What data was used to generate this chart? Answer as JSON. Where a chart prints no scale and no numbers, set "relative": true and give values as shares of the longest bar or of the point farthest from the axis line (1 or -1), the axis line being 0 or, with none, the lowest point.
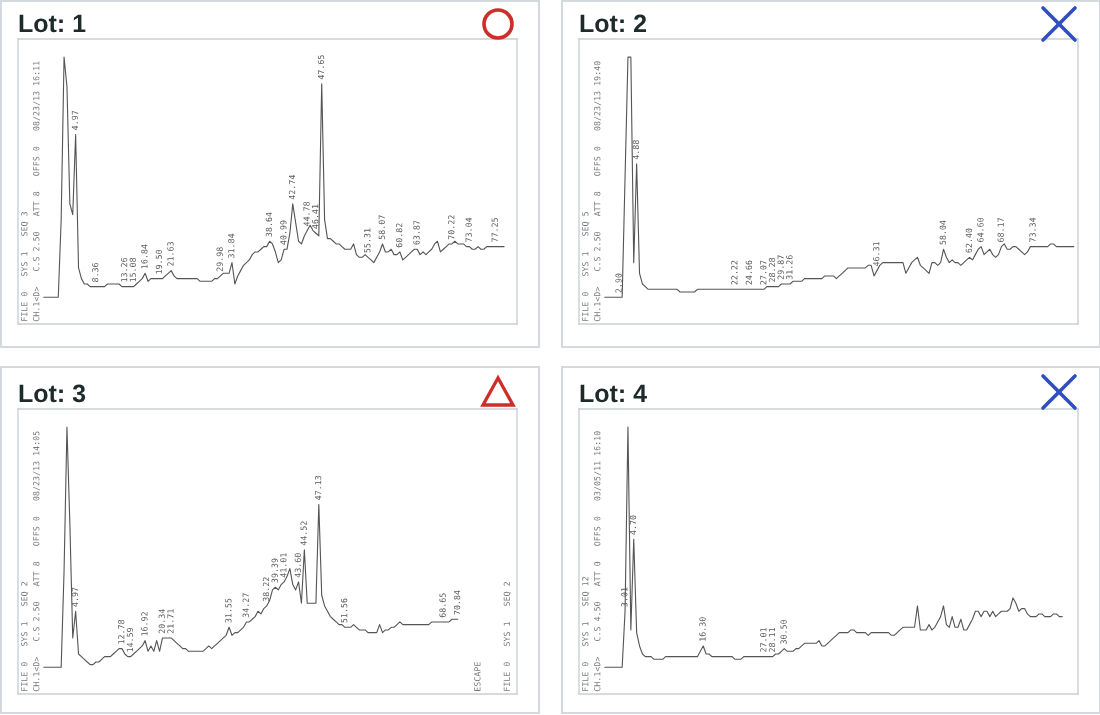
{
  "chart_data": [
    {
      "type": "line",
      "title": "Lot: 1",
      "relative": true,
      "color": "#555555",
      "categories": [
        null,
        null,
        null,
        null,
        null,
        null,
        null,
        null,
        null,
        null,
        null,
        "4.97",
        null,
        null,
        null,
        null,
        null,
        null,
        "8.36",
        null,
        null,
        null,
        null,
        null,
        null,
        null,
        null,
        null,
        "13.26",
        null,
        null,
        "15.08",
        null,
        null,
        null,
        "16.84",
        null,
        null,
        null,
        null,
        "19.50",
        null,
        null,
        null,
        "21.63",
        null,
        null,
        null,
        null,
        null,
        null,
        null,
        null,
        null,
        null,
        null,
        null,
        null,
        null,
        null,
        null,
        "29.98",
        null,
        null,
        null,
        "31.84",
        null,
        null,
        null,
        null,
        null,
        null,
        null,
        null,
        null,
        null,
        null,
        null,
        "38.64",
        null,
        null,
        null,
        null,
        "40.99",
        null,
        null,
        "42.74",
        null,
        null,
        null,
        null,
        "44.78",
        null,
        null,
        "46.41",
        null,
        "47.65",
        null,
        null,
        null,
        null,
        null,
        null,
        null,
        null,
        null,
        null,
        null,
        null,
        null,
        null,
        null,
        "55.31",
        null,
        null,
        null,
        null,
        "58.07",
        null,
        null,
        null,
        null,
        null,
        "60.82",
        null,
        null,
        null,
        null,
        null,
        "63.87",
        null,
        null,
        null,
        null,
        null,
        null,
        null,
        null,
        null,
        null,
        null,
        "70.22",
        null,
        null,
        null,
        null,
        null,
        "73.04",
        null,
        null,
        null,
        null,
        null,
        null,
        null,
        null,
        "77.25",
        null,
        null,
        null,
        null,
        null,
        null
      ],
      "values": [
        0.1,
        0.1,
        0.1,
        0.1,
        0.1,
        0.1,
        0.39,
        1.0,
        0.89,
        0.45,
        0.41,
        0.71,
        0.21,
        0.17,
        0.15,
        0.15,
        0.14,
        0.14,
        0.14,
        0.14,
        0.14,
        0.14,
        0.15,
        0.15,
        0.15,
        0.15,
        0.15,
        0.14,
        0.14,
        0.14,
        0.14,
        0.14,
        0.15,
        0.16,
        0.17,
        0.19,
        0.16,
        0.17,
        0.17,
        0.17,
        0.17,
        0.17,
        0.18,
        0.19,
        0.2,
        0.18,
        0.17,
        0.17,
        0.17,
        0.17,
        0.17,
        0.17,
        0.17,
        0.17,
        0.16,
        0.16,
        0.16,
        0.16,
        0.16,
        0.17,
        0.17,
        0.18,
        0.19,
        0.19,
        0.19,
        0.23,
        0.15,
        0.18,
        0.2,
        0.22,
        0.23,
        0.24,
        0.26,
        0.27,
        0.27,
        0.28,
        0.29,
        0.29,
        0.31,
        0.3,
        0.27,
        0.23,
        0.24,
        0.28,
        0.28,
        0.34,
        0.45,
        0.38,
        0.31,
        0.3,
        0.33,
        0.35,
        0.37,
        0.35,
        0.34,
        0.33,
        0.9,
        0.39,
        0.32,
        0.32,
        0.31,
        0.3,
        0.3,
        0.29,
        0.28,
        0.28,
        0.28,
        0.3,
        0.26,
        0.25,
        0.25,
        0.26,
        0.25,
        0.24,
        0.23,
        0.25,
        0.27,
        0.3,
        0.27,
        0.27,
        0.28,
        0.26,
        0.26,
        0.27,
        0.24,
        0.25,
        0.26,
        0.27,
        0.28,
        0.28,
        0.26,
        0.27,
        0.26,
        0.27,
        0.28,
        0.3,
        0.31,
        0.27,
        0.28,
        0.29,
        0.3,
        0.3,
        0.31,
        0.3,
        0.3,
        0.3,
        0.29,
        0.29,
        0.28,
        0.28,
        0.29,
        0.28,
        0.28,
        0.29,
        0.29,
        0.29,
        0.29,
        0.29,
        0.29,
        0.29,
        null,
        null,
        null
      ],
      "annotations": [
        "FILE 0   SYS 1   SEQ 3",
        "CH.1<D>   C.S 2.50   ATT 8   OFFS 0   08/23/13 16:11"
      ]
    },
    {
      "type": "line",
      "title": "Lot: 2",
      "relative": true,
      "color": "#555555",
      "categories": [
        null,
        null,
        null,
        null,
        null,
        "2.90",
        null,
        null,
        null,
        null,
        null,
        "4.88",
        null,
        null,
        null,
        null,
        null,
        null,
        null,
        null,
        null,
        null,
        null,
        null,
        null,
        null,
        null,
        null,
        null,
        null,
        null,
        null,
        null,
        null,
        null,
        null,
        null,
        null,
        null,
        null,
        null,
        null,
        null,
        null,
        null,
        "22.22",
        null,
        null,
        null,
        null,
        "24.66",
        null,
        null,
        null,
        null,
        "27.07",
        null,
        null,
        "28.28",
        null,
        null,
        "29.87",
        null,
        null,
        "31.26",
        null,
        null,
        null,
        null,
        null,
        null,
        null,
        null,
        null,
        null,
        null,
        null,
        null,
        null,
        null,
        null,
        null,
        null,
        null,
        null,
        null,
        null,
        null,
        null,
        null,
        null,
        null,
        null,
        null,
        "46.31",
        null,
        null,
        null,
        null,
        null,
        null,
        null,
        null,
        null,
        null,
        null,
        null,
        null,
        null,
        null,
        null,
        null,
        null,
        null,
        null,
        null,
        null,
        "58.04",
        null,
        null,
        null,
        null,
        null,
        null,
        null,
        null,
        "62.40",
        null,
        null,
        null,
        "64.60",
        null,
        null,
        null,
        null,
        null,
        null,
        "68.17",
        null,
        null,
        null,
        null,
        null,
        null,
        null,
        null,
        null,
        null,
        "73.34",
        null,
        null,
        null,
        null,
        null,
        null,
        null,
        null,
        null,
        null,
        null,
        null,
        null,
        null
      ],
      "values": [
        0.1,
        0.1,
        0.1,
        0.1,
        0.1,
        0.1,
        0.1,
        0.55,
        1.0,
        1.0,
        0.23,
        0.6,
        0.19,
        0.15,
        0.14,
        0.13,
        0.13,
        0.13,
        0.13,
        0.13,
        0.13,
        0.13,
        0.13,
        0.13,
        0.13,
        0.13,
        0.12,
        0.12,
        0.12,
        0.12,
        0.12,
        0.12,
        0.13,
        0.13,
        0.13,
        0.13,
        0.13,
        0.13,
        0.13,
        0.13,
        0.13,
        0.13,
        0.13,
        0.13,
        0.13,
        0.13,
        0.13,
        0.13,
        0.13,
        0.13,
        0.13,
        0.13,
        0.13,
        0.13,
        0.13,
        0.13,
        0.14,
        0.14,
        0.14,
        0.14,
        0.14,
        0.15,
        0.15,
        0.15,
        0.15,
        0.16,
        0.16,
        0.16,
        0.16,
        0.17,
        0.17,
        0.17,
        0.17,
        0.17,
        0.17,
        0.17,
        0.18,
        0.18,
        0.18,
        0.18,
        0.17,
        0.18,
        0.19,
        0.2,
        0.21,
        0.21,
        0.21,
        0.21,
        0.21,
        0.21,
        0.21,
        0.22,
        0.22,
        0.18,
        0.2,
        0.22,
        0.23,
        0.23,
        0.23,
        0.23,
        0.23,
        0.23,
        0.23,
        0.23,
        0.19,
        0.21,
        0.23,
        0.24,
        0.25,
        0.22,
        0.21,
        0.2,
        0.19,
        0.23,
        0.23,
        0.22,
        0.23,
        0.28,
        0.25,
        0.23,
        0.24,
        0.23,
        0.23,
        0.22,
        0.23,
        0.24,
        0.25,
        0.24,
        0.26,
        0.28,
        0.29,
        0.26,
        0.27,
        0.28,
        0.26,
        0.25,
        0.26,
        0.29,
        0.3,
        0.28,
        0.28,
        0.29,
        0.29,
        0.28,
        0.27,
        0.26,
        0.27,
        0.29,
        0.29,
        0.29,
        0.29,
        0.29,
        0.29,
        0.29,
        0.3,
        0.3,
        0.29,
        0.29,
        0.29,
        0.29,
        0.29,
        0.29,
        0.29
      ],
      "annotations": [
        "FILE 0   SYS 1   SEQ 5",
        "CH.1<D>   C.S 2.50   ATT 8   OFFS 0   08/23/13 19:40"
      ]
    },
    {
      "type": "line",
      "title": "Lot: 3",
      "relative": true,
      "color": "#555555",
      "categories": [
        null,
        null,
        null,
        null,
        null,
        null,
        null,
        null,
        null,
        null,
        null,
        "4.97",
        null,
        null,
        null,
        null,
        null,
        null,
        null,
        null,
        null,
        null,
        null,
        null,
        null,
        null,
        null,
        "12.78",
        null,
        null,
        "14.59",
        null,
        null,
        null,
        null,
        "16.92",
        null,
        null,
        null,
        null,
        null,
        "20.34",
        null,
        null,
        "21.71",
        null,
        null,
        null,
        null,
        null,
        null,
        null,
        null,
        null,
        null,
        null,
        null,
        null,
        null,
        null,
        null,
        null,
        null,
        null,
        "31.55",
        null,
        null,
        null,
        null,
        null,
        "34.27",
        null,
        null,
        null,
        null,
        null,
        null,
        "38.22",
        null,
        null,
        "39.39",
        null,
        null,
        "41.01",
        null,
        null,
        null,
        null,
        "43.60",
        null,
        "44.52",
        null,
        null,
        null,
        null,
        "47.13",
        null,
        null,
        null,
        null,
        null,
        null,
        null,
        null,
        "51.56",
        null,
        null,
        null,
        null,
        null,
        null,
        null,
        null,
        null,
        null,
        null,
        null,
        null,
        null,
        null,
        null,
        null,
        null,
        null,
        null,
        null,
        null,
        null,
        null,
        null,
        null,
        null,
        null,
        null,
        null,
        null,
        null,
        null,
        "68.65",
        null,
        null,
        null,
        null,
        "70.84",
        null,
        null,
        null,
        null,
        null,
        null,
        null,
        null,
        null,
        null,
        null,
        null,
        null,
        null,
        null,
        null,
        null,
        null,
        null
      ],
      "values": [
        0.1,
        0.1,
        0.1,
        0.1,
        0.1,
        0.1,
        0.1,
        0.46,
        1.0,
        0.64,
        0.21,
        0.31,
        0.15,
        0.14,
        0.13,
        0.12,
        0.11,
        0.11,
        0.12,
        0.12,
        0.13,
        0.14,
        0.14,
        0.14,
        0.15,
        0.16,
        0.17,
        0.17,
        0.15,
        0.14,
        0.14,
        0.15,
        0.16,
        0.17,
        0.18,
        0.2,
        0.16,
        0.18,
        0.16,
        0.2,
        0.16,
        0.21,
        0.21,
        0.21,
        0.21,
        0.2,
        0.19,
        0.18,
        0.17,
        0.17,
        0.16,
        0.16,
        0.16,
        0.16,
        0.16,
        0.16,
        0.17,
        0.18,
        0.17,
        0.18,
        0.19,
        0.2,
        0.21,
        0.22,
        0.25,
        0.22,
        0.23,
        0.23,
        0.24,
        0.25,
        0.27,
        0.27,
        0.28,
        0.29,
        0.31,
        0.3,
        0.32,
        0.33,
        0.35,
        0.39,
        0.4,
        0.39,
        0.41,
        0.42,
        0.44,
        0.47,
        0.41,
        0.39,
        0.42,
        0.34,
        0.54,
        0.34,
        0.34,
        0.34,
        0.34,
        0.71,
        0.37,
        0.33,
        0.31,
        0.29,
        0.28,
        0.27,
        0.26,
        0.26,
        0.25,
        0.25,
        0.25,
        0.26,
        0.25,
        0.24,
        0.24,
        0.24,
        0.23,
        0.23,
        0.23,
        0.23,
        0.26,
        0.23,
        0.24,
        0.24,
        0.25,
        0.25,
        0.26,
        0.27,
        0.26,
        0.26,
        0.26,
        0.26,
        0.26,
        0.26,
        0.26,
        0.26,
        0.26,
        0.26,
        0.27,
        0.27,
        0.27,
        0.27,
        0.27,
        0.27,
        0.27,
        0.28,
        0.28,
        0.28,
        null,
        null,
        null,
        null,
        null,
        null,
        null,
        null,
        null,
        null,
        null,
        null,
        null,
        null,
        null,
        null,
        null,
        null,
        null
      ],
      "annotations": [
        "FILE 0   SYS 1   SEQ 2",
        "CH.1<D>   C.S 2.50   ATT 8   OFFS 0   08/23/13 14:05",
        "ESCAPE",
        "FILE 0   SYS 1   SEQ 2"
      ]
    },
    {
      "type": "line",
      "title": "Lot: 4",
      "relative": true,
      "color": "#555555",
      "categories": [
        null,
        null,
        null,
        null,
        null,
        null,
        null,
        "3.01",
        null,
        null,
        "4.70",
        null,
        null,
        null,
        null,
        null,
        null,
        null,
        null,
        null,
        null,
        null,
        null,
        null,
        null,
        null,
        null,
        null,
        null,
        null,
        null,
        null,
        null,
        null,
        "16.30",
        null,
        null,
        null,
        null,
        null,
        null,
        null,
        null,
        null,
        null,
        null,
        null,
        null,
        null,
        null,
        null,
        null,
        null,
        null,
        null,
        "27.01",
        null,
        null,
        "28.11",
        null,
        null,
        null,
        "30.50",
        null,
        null,
        null,
        null,
        null,
        null,
        null,
        null,
        null,
        null,
        null,
        null,
        null,
        null,
        null,
        null,
        null,
        null,
        null,
        null,
        null,
        null,
        null,
        null,
        null,
        null,
        null,
        null,
        null,
        null,
        null,
        null,
        null,
        null,
        null,
        null,
        null,
        null,
        null,
        null,
        null,
        null,
        null,
        null,
        null,
        null,
        null,
        null,
        null,
        null,
        null,
        null,
        null,
        null,
        null,
        null,
        null,
        null,
        null,
        null,
        null,
        null,
        null,
        null,
        null,
        null,
        null,
        null,
        null,
        null,
        null,
        null,
        null,
        null,
        null,
        null,
        null,
        null,
        null,
        null,
        null,
        null,
        null,
        null,
        null,
        null,
        null,
        null,
        null,
        null,
        null,
        null,
        null,
        null,
        null,
        null,
        null,
        null,
        null,
        null
      ],
      "values": [
        0.1,
        0.1,
        0.1,
        0.1,
        0.1,
        0.1,
        0.1,
        0.31,
        1.0,
        0.24,
        0.58,
        0.23,
        0.18,
        0.15,
        0.14,
        0.14,
        0.14,
        0.13,
        0.13,
        0.13,
        0.13,
        0.14,
        0.14,
        0.14,
        0.14,
        0.14,
        0.14,
        0.14,
        0.14,
        0.14,
        0.14,
        0.14,
        0.14,
        0.16,
        0.18,
        0.15,
        0.15,
        0.14,
        0.14,
        0.14,
        0.14,
        0.14,
        0.14,
        0.14,
        0.14,
        0.13,
        0.13,
        0.13,
        0.14,
        0.14,
        0.14,
        0.14,
        0.14,
        0.14,
        0.14,
        0.14,
        0.14,
        0.14,
        0.14,
        0.15,
        0.15,
        0.16,
        0.17,
        0.16,
        0.16,
        0.16,
        0.17,
        0.17,
        0.18,
        0.19,
        0.19,
        0.19,
        0.19,
        0.19,
        0.2,
        0.18,
        0.18,
        0.19,
        0.2,
        0.21,
        0.22,
        0.23,
        0.23,
        0.23,
        0.23,
        0.24,
        0.24,
        0.23,
        0.23,
        0.23,
        0.23,
        0.22,
        0.23,
        0.23,
        0.23,
        0.23,
        0.23,
        0.23,
        0.23,
        0.22,
        0.22,
        0.23,
        0.24,
        0.25,
        0.25,
        0.25,
        0.25,
        0.25,
        0.33,
        0.24,
        0.24,
        0.24,
        0.26,
        0.24,
        0.25,
        0.27,
        0.29,
        0.33,
        0.26,
        0.25,
        0.29,
        0.25,
        0.25,
        0.28,
        0.24,
        0.24,
        0.26,
        0.28,
        0.31,
        0.31,
        0.29,
        0.31,
        0.31,
        0.29,
        0.31,
        0.29,
        0.3,
        0.31,
        0.31,
        0.31,
        0.32,
        0.36,
        0.34,
        0.31,
        0.32,
        0.32,
        0.3,
        0.29,
        0.29,
        0.29,
        0.3,
        0.3,
        0.29,
        0.29,
        0.29,
        0.3,
        0.3,
        0.29,
        0.29,
        null,
        null,
        null,
        null
      ],
      "annotations": [
        "FILE 0   SYS 1   SEQ 12",
        "CH.1<D>   C.S 4.50   ATT 0   OFFS 0   03/05/11 16:10"
      ]
    }
  ]
}
